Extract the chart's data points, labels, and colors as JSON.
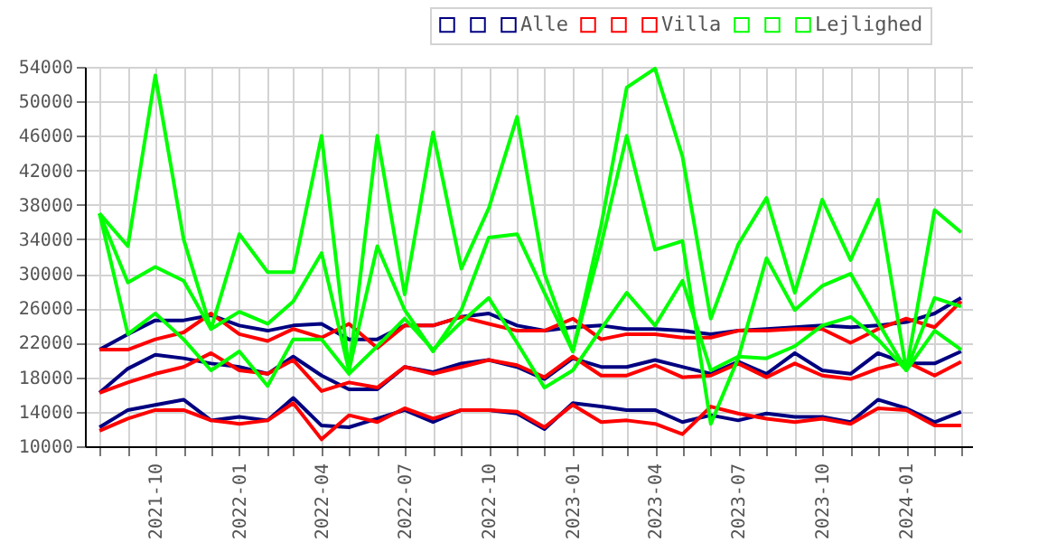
{
  "chart_data": {
    "type": "line",
    "x": [
      "2021-08",
      "2021-09",
      "2021-10",
      "2021-11",
      "2021-12",
      "2022-01",
      "2022-02",
      "2022-03",
      "2022-04",
      "2022-05",
      "2022-06",
      "2022-07",
      "2022-08",
      "2022-09",
      "2022-10",
      "2022-11",
      "2022-12",
      "2023-01",
      "2023-02",
      "2023-03",
      "2023-04",
      "2023-05",
      "2023-06",
      "2023-07",
      "2023-08",
      "2023-09",
      "2023-10",
      "2023-11",
      "2023-12",
      "2024-01",
      "2024-02",
      "2024-03"
    ],
    "series": [
      {
        "color": "#000080",
        "values": [
          21200,
          23000,
          24600,
          24600,
          25200,
          24000,
          23400,
          24000,
          24200,
          22400,
          22400,
          24000,
          24000,
          25000,
          25400,
          24000,
          23400,
          23800,
          24000,
          23600,
          23600,
          23400,
          23000,
          23400,
          23600,
          23800,
          24000,
          23800,
          24000,
          24400,
          25400,
          27200
        ]
      },
      {
        "color": "#000080",
        "values": [
          16200,
          19000,
          20600,
          20200,
          19600,
          19200,
          18400,
          20400,
          18200,
          16600,
          16600,
          19200,
          18600,
          19600,
          20000,
          19200,
          17800,
          20200,
          19200,
          19200,
          20000,
          19200,
          18400,
          19800,
          18400,
          20800,
          18800,
          18400,
          20800,
          19600,
          19600,
          21000
        ]
      },
      {
        "name": "Alle",
        "color": "#000080",
        "values": [
          12200,
          14200,
          14800,
          15400,
          13000,
          13400,
          13000,
          15600,
          12400,
          12200,
          13200,
          14200,
          12800,
          14200,
          14200,
          13800,
          12000,
          15000,
          14600,
          14200,
          14200,
          12800,
          13600,
          13000,
          13800,
          13400,
          13400,
          12800,
          15400,
          14400,
          12800,
          14000
        ]
      },
      {
        "color": "#ff0000",
        "values": [
          21200,
          21200,
          22400,
          23200,
          25400,
          23000,
          22200,
          23600,
          22600,
          24200,
          21400,
          24000,
          24000,
          25000,
          24200,
          23400,
          23400,
          24800,
          22400,
          23000,
          23000,
          22600,
          22600,
          23400,
          23400,
          23600,
          23600,
          22000,
          23600,
          24800,
          23800,
          26800
        ]
      },
      {
        "color": "#ff0000",
        "values": [
          16200,
          17400,
          18400,
          19200,
          20800,
          18800,
          18400,
          20000,
          16400,
          17400,
          16800,
          19200,
          18400,
          19200,
          20000,
          19400,
          18000,
          20400,
          18200,
          18200,
          19400,
          18000,
          18200,
          19600,
          18000,
          19600,
          18200,
          17800,
          19000,
          19800,
          18200,
          19800
        ]
      },
      {
        "name": "Villa",
        "color": "#ff0000",
        "values": [
          11800,
          13200,
          14200,
          14200,
          13000,
          12600,
          13000,
          15000,
          10800,
          13600,
          12800,
          14400,
          13200,
          14200,
          14200,
          14000,
          12200,
          14800,
          12800,
          13000,
          12600,
          11400,
          14600,
          13800,
          13200,
          12800,
          13200,
          12600,
          14400,
          14200,
          12400,
          12400
        ]
      },
      {
        "color": "#00ff00",
        "values": [
          37000,
          33200,
          53000,
          34000,
          23600,
          34600,
          30200,
          30200,
          46000,
          18800,
          46000,
          27600,
          46400,
          30600,
          37600,
          48200,
          30000,
          21000,
          35600,
          51600,
          53800,
          43600,
          24800,
          33400,
          38800,
          27800,
          38600,
          31600,
          38600,
          18800,
          37400,
          34800
        ]
      },
      {
        "color": "#00ff00",
        "values": [
          37000,
          29000,
          30800,
          29200,
          23600,
          25600,
          24200,
          26800,
          32400,
          18800,
          33200,
          25800,
          21000,
          25800,
          34200,
          34600,
          27800,
          21000,
          33400,
          46000,
          32800,
          33800,
          12600,
          20200,
          31800,
          25800,
          28600,
          30000,
          24400,
          18800,
          23400,
          21200
        ]
      },
      {
        "name": "Lejlighed",
        "color": "#00ff00",
        "values": [
          37000,
          23000,
          25400,
          22400,
          18800,
          21000,
          17000,
          22400,
          22400,
          18400,
          21600,
          24800,
          21200,
          24400,
          27200,
          22000,
          16800,
          18800,
          23600,
          27800,
          24000,
          29200,
          18800,
          20400,
          20200,
          21600,
          24000,
          25000,
          22400,
          18800,
          27200,
          26200
        ]
      }
    ],
    "xlim": [
      "2021-07-16",
      "2024-03-13"
    ],
    "xticks": [
      {
        "value": "2021-08",
        "label": null
      },
      {
        "value": "2021-09",
        "label": null
      },
      "2021-10",
      {
        "value": "2021-11",
        "label": null
      },
      {
        "value": "2021-12",
        "label": null
      },
      "2022-01",
      {
        "value": "2022-02",
        "label": null
      },
      {
        "value": "2022-03",
        "label": null
      },
      "2022-04",
      {
        "value": "2022-05",
        "label": null
      },
      {
        "value": "2022-06",
        "label": null
      },
      "2022-07",
      {
        "value": "2022-08",
        "label": null
      },
      {
        "value": "2022-09",
        "label": null
      },
      "2022-10",
      {
        "value": "2022-11",
        "label": null
      },
      {
        "value": "2022-12",
        "label": null
      },
      "2023-01",
      {
        "value": "2023-02",
        "label": null
      },
      {
        "value": "2023-03",
        "label": null
      },
      "2023-04",
      {
        "value": "2023-05",
        "label": null
      },
      {
        "value": "2023-06",
        "label": null
      },
      "2023-07",
      {
        "value": "2023-08",
        "label": null
      },
      {
        "value": "2023-09",
        "label": null
      },
      "2023-10",
      {
        "value": "2023-11",
        "label": null
      },
      {
        "value": "2023-12",
        "label": null
      },
      "2024-01",
      {
        "value": "2024-02",
        "label": null
      },
      {
        "value": "2024-03",
        "label": null
      }
    ],
    "ylim": [
      10000,
      54000
    ],
    "yticks": [
      10000,
      14000,
      18000,
      22000,
      26000,
      30000,
      34000,
      38000,
      42000,
      46000,
      50000,
      54000
    ],
    "grid": true,
    "legend": "top right",
    "marker": "none",
    "line_style": "solid"
  }
}
